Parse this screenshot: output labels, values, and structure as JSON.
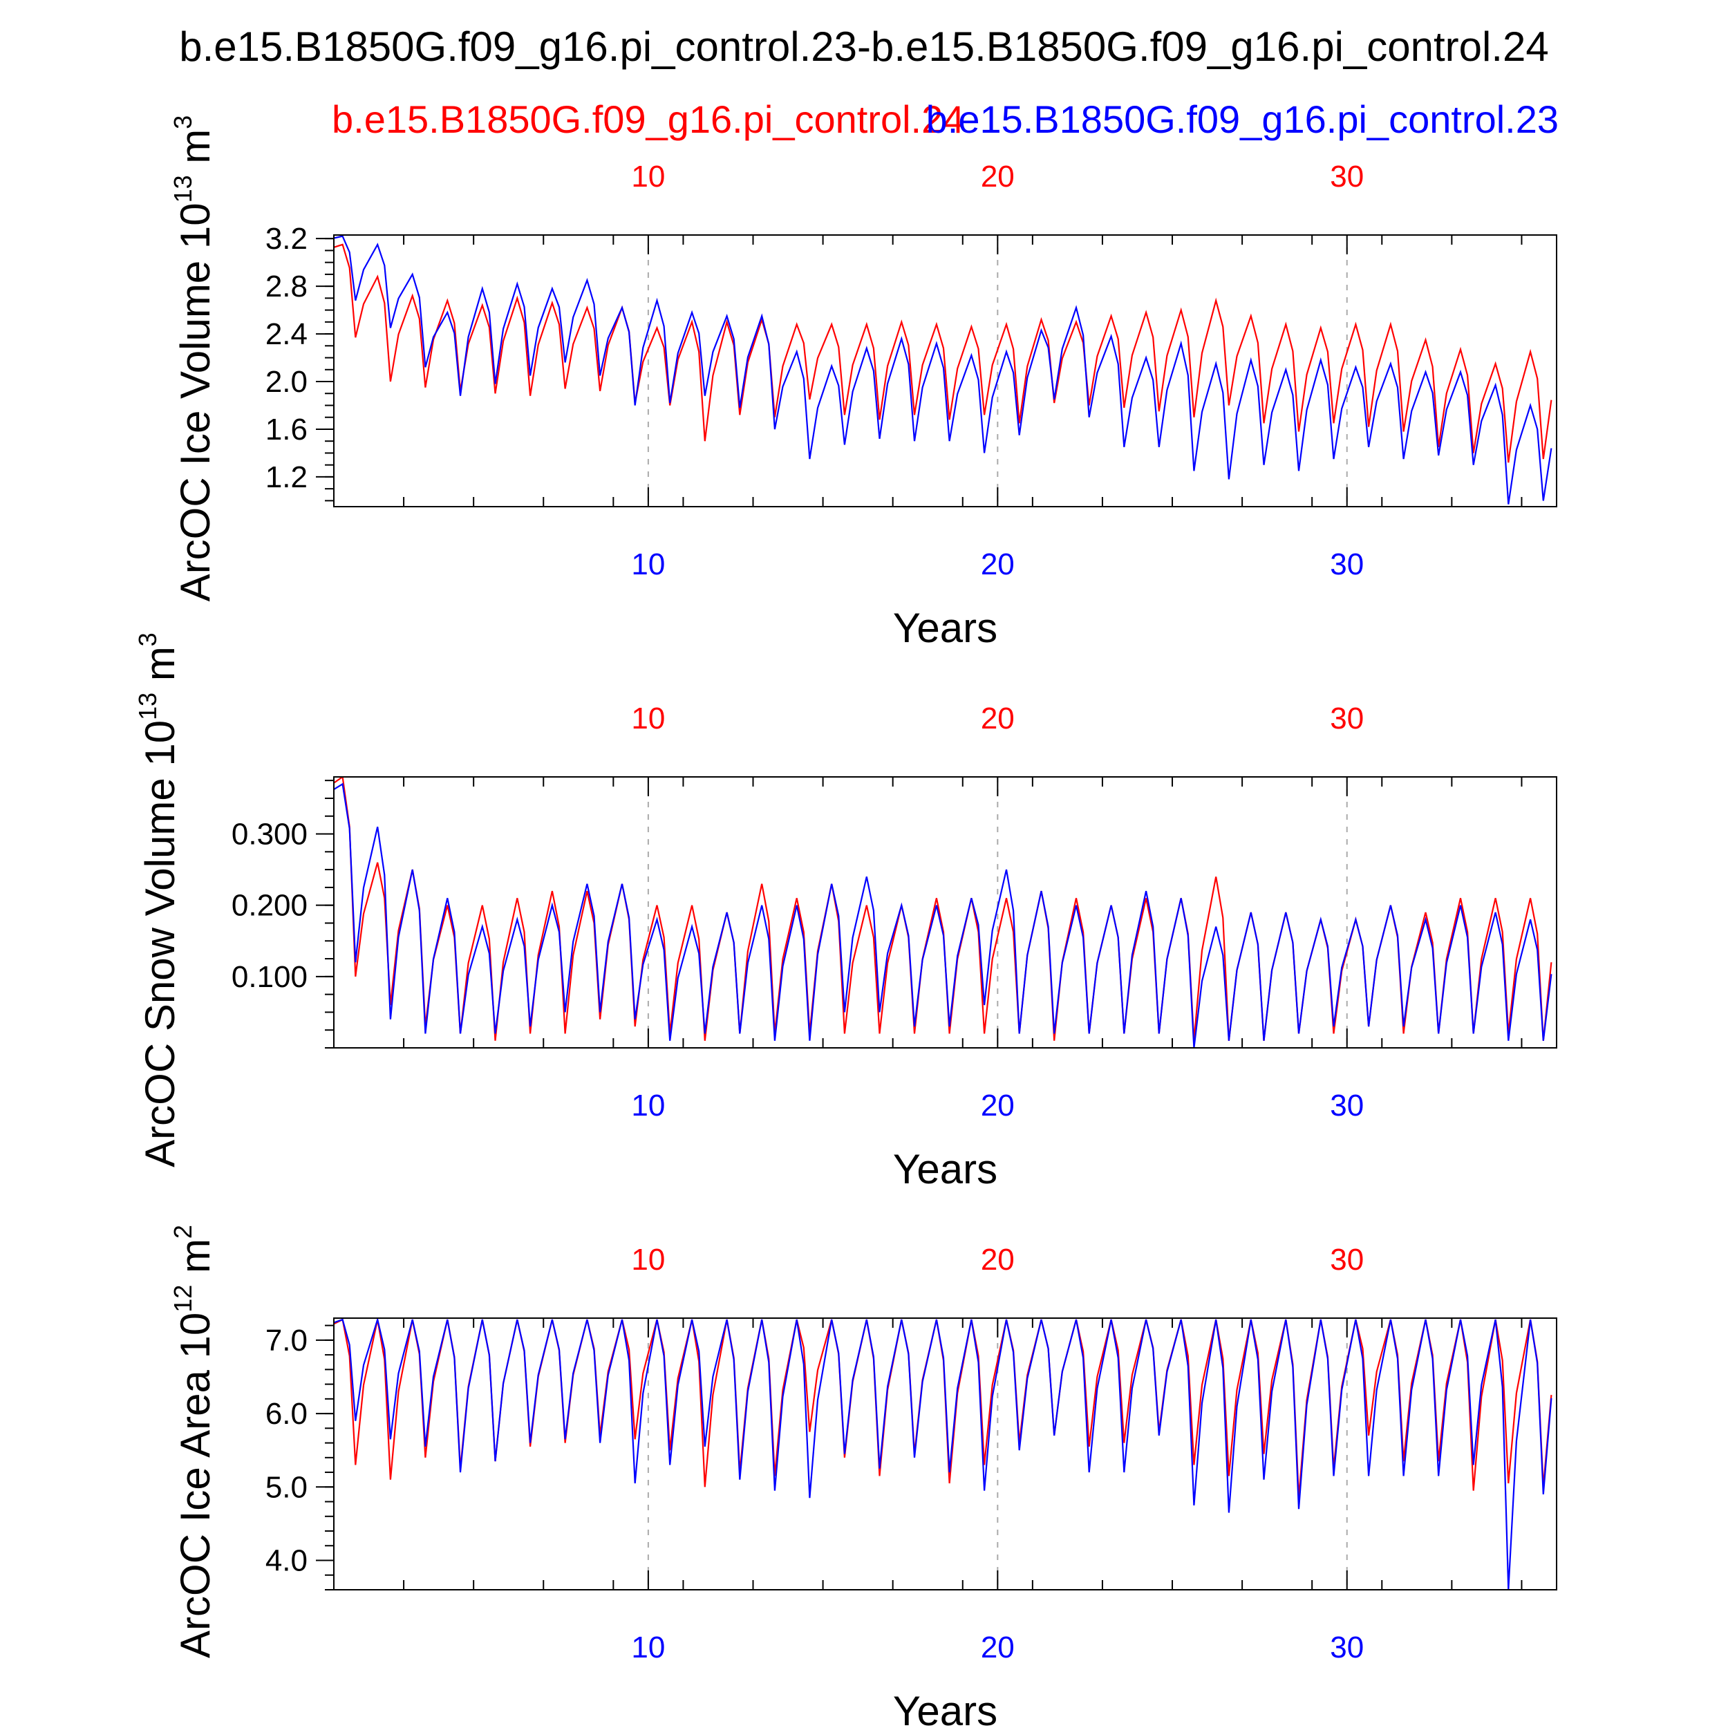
{
  "page": {
    "title": "b.e15.B1850G.f09_g16.pi_control.23-b.e15.B1850G.f09_g16.pi_control.24",
    "legend_red": "b.e15.B1850G.f09_g16.pi_control.24",
    "legend_blue": "b.e15.B1850G.f09_g16.pi_control.23"
  },
  "colors": {
    "red_series": "#ff0000",
    "blue_series": "#0000ff",
    "axis": "#000000",
    "grid": "#aaaaaa"
  },
  "chart_data": [
    {
      "type": "line",
      "id": "ice-volume",
      "ylabel": "ArcOC Ice Volume 10",
      "ylabel_exp": "13",
      "ylabel_unit": " m",
      "ylabel_unit_exp": "3",
      "xlabel": "Years",
      "xlim": [
        1,
        36
      ],
      "ylim": [
        0.95,
        3.23
      ],
      "yticks": [
        "1.2",
        "1.6",
        "2.0",
        "2.4",
        "2.8",
        "3.2"
      ],
      "ytick_values": [
        1.2,
        1.6,
        2.0,
        2.4,
        2.8,
        3.2
      ],
      "yminor": 0.1,
      "xticks": [
        "10",
        "20",
        "30"
      ],
      "xtick_values": [
        10,
        20,
        30
      ],
      "series": [
        {
          "name": "b.e15.B1850G.f09_g16.pi_control.24",
          "color": "red",
          "max": [
            3.15,
            2.88,
            2.72,
            2.68,
            2.64,
            2.7,
            2.66,
            2.62,
            2.62,
            2.45,
            2.5,
            2.5,
            2.52,
            2.48,
            2.48,
            2.48,
            2.5,
            2.48,
            2.46,
            2.48,
            2.52,
            2.5,
            2.55,
            2.58,
            2.6,
            2.68,
            2.55,
            2.48,
            2.45,
            2.48,
            2.48,
            2.35,
            2.27,
            2.15,
            2.25
          ],
          "min": [
            2.37,
            2.0,
            1.95,
            1.92,
            1.9,
            1.88,
            1.94,
            1.92,
            1.82,
            1.8,
            1.5,
            1.72,
            1.7,
            1.85,
            1.72,
            1.68,
            1.72,
            1.68,
            1.72,
            1.65,
            1.82,
            1.8,
            1.78,
            1.75,
            1.7,
            1.8,
            1.65,
            1.58,
            1.65,
            1.62,
            1.58,
            1.45,
            1.4,
            1.32,
            1.35
          ]
        },
        {
          "name": "b.e15.B1850G.f09_g16.pi_control.23",
          "color": "blue",
          "max": [
            3.22,
            3.15,
            2.9,
            2.58,
            2.78,
            2.82,
            2.78,
            2.85,
            2.62,
            2.68,
            2.58,
            2.55,
            2.55,
            2.25,
            2.13,
            2.28,
            2.36,
            2.32,
            2.22,
            2.25,
            2.43,
            2.62,
            2.38,
            2.2,
            2.32,
            2.15,
            2.18,
            2.1,
            2.18,
            2.12,
            2.15,
            2.08,
            2.08,
            1.97,
            1.8
          ],
          "min": [
            2.68,
            2.45,
            2.12,
            1.88,
            1.98,
            2.05,
            2.16,
            2.05,
            1.8,
            1.82,
            1.88,
            1.78,
            1.6,
            1.35,
            1.47,
            1.52,
            1.5,
            1.5,
            1.4,
            1.55,
            1.85,
            1.7,
            1.45,
            1.45,
            1.25,
            1.18,
            1.3,
            1.25,
            1.35,
            1.45,
            1.35,
            1.38,
            1.3,
            0.97,
            1.0
          ]
        }
      ]
    },
    {
      "type": "line",
      "id": "snow-volume",
      "ylabel": "ArcOC Snow Volume 10",
      "ylabel_exp": "13",
      "ylabel_unit": " m",
      "ylabel_unit_exp": "3",
      "xlabel": "Years",
      "xlim": [
        1,
        36
      ],
      "ylim": [
        0.0,
        0.38
      ],
      "yticks": [
        "0.100",
        "0.200",
        "0.300"
      ],
      "ytick_values": [
        0.1,
        0.2,
        0.3
      ],
      "yminor": 0.025,
      "xticks": [
        "10",
        "20",
        "30"
      ],
      "xtick_values": [
        10,
        20,
        30
      ],
      "series": [
        {
          "name": "b.e15.B1850G.f09_g16.pi_control.24",
          "color": "red",
          "max": [
            0.38,
            0.26,
            0.25,
            0.2,
            0.2,
            0.21,
            0.22,
            0.22,
            0.23,
            0.2,
            0.2,
            0.19,
            0.23,
            0.21,
            0.23,
            0.2,
            0.2,
            0.21,
            0.21,
            0.21,
            0.22,
            0.21,
            0.2,
            0.21,
            0.21,
            0.24,
            0.19,
            0.19,
            0.18,
            0.18,
            0.2,
            0.19,
            0.21,
            0.21,
            0.21
          ],
          "min": [
            0.1,
            0.06,
            0.03,
            0.02,
            0.01,
            0.02,
            0.02,
            0.04,
            0.03,
            0.02,
            0.01,
            0.02,
            0.02,
            0.02,
            0.02,
            0.02,
            0.02,
            0.02,
            0.02,
            0.02,
            0.01,
            0.02,
            0.02,
            0.02,
            0.01,
            0.01,
            0.01,
            0.02,
            0.02,
            0.03,
            0.02,
            0.02,
            0.02,
            0.02,
            0.01
          ]
        },
        {
          "name": "b.e15.B1850G.f09_g16.pi_control.23",
          "color": "blue",
          "max": [
            0.37,
            0.31,
            0.25,
            0.21,
            0.17,
            0.18,
            0.2,
            0.23,
            0.23,
            0.18,
            0.17,
            0.19,
            0.2,
            0.2,
            0.23,
            0.24,
            0.2,
            0.2,
            0.21,
            0.25,
            0.22,
            0.2,
            0.2,
            0.22,
            0.21,
            0.17,
            0.19,
            0.19,
            0.18,
            0.18,
            0.2,
            0.18,
            0.2,
            0.19,
            0.18
          ],
          "min": [
            0.12,
            0.04,
            0.02,
            0.02,
            0.02,
            0.03,
            0.05,
            0.05,
            0.04,
            0.01,
            0.02,
            0.02,
            0.01,
            0.01,
            0.05,
            0.05,
            0.03,
            0.03,
            0.06,
            0.02,
            0.02,
            0.02,
            0.02,
            0.02,
            0.0,
            0.01,
            0.01,
            0.02,
            0.03,
            0.03,
            0.03,
            0.02,
            0.02,
            0.01,
            0.01
          ]
        }
      ]
    },
    {
      "type": "line",
      "id": "ice-area",
      "ylabel": "ArcOC Ice Area 10",
      "ylabel_exp": "12",
      "ylabel_unit": " m",
      "ylabel_unit_exp": "2",
      "xlabel": "Years",
      "xlim": [
        1,
        36
      ],
      "ylim": [
        3.6,
        7.3
      ],
      "yticks": [
        "4.0",
        "5.0",
        "6.0",
        "7.0"
      ],
      "ytick_values": [
        4.0,
        5.0,
        6.0,
        7.0
      ],
      "yminor": 0.2,
      "xticks": [
        "10",
        "20",
        "30"
      ],
      "xtick_values": [
        10,
        20,
        30
      ],
      "series": [
        {
          "name": "b.e15.B1850G.f09_g16.pi_control.24",
          "color": "red",
          "max": [
            7.28,
            7.28,
            7.28,
            7.28,
            7.28,
            7.28,
            7.28,
            7.28,
            7.28,
            7.28,
            7.28,
            7.28,
            7.28,
            7.28,
            7.28,
            7.28,
            7.28,
            7.28,
            7.28,
            7.28,
            7.28,
            7.28,
            7.28,
            7.28,
            7.28,
            7.28,
            7.28,
            7.28,
            7.28,
            7.28,
            7.28,
            7.28,
            7.28,
            7.28,
            7.28
          ],
          "min": [
            5.3,
            5.1,
            5.4,
            5.25,
            5.35,
            5.55,
            5.6,
            5.7,
            5.65,
            5.5,
            5.0,
            5.2,
            5.15,
            5.75,
            5.4,
            5.15,
            5.45,
            5.05,
            5.3,
            5.6,
            5.7,
            5.55,
            5.6,
            5.75,
            5.3,
            5.15,
            5.45,
            4.85,
            5.25,
            5.7,
            5.35,
            5.35,
            4.95,
            5.05,
            5.0
          ]
        },
        {
          "name": "b.e15.B1850G.f09_g16.pi_control.23",
          "color": "blue",
          "max": [
            7.28,
            7.28,
            7.28,
            7.28,
            7.28,
            7.28,
            7.28,
            7.28,
            7.28,
            7.28,
            7.28,
            7.28,
            7.28,
            7.28,
            7.28,
            7.28,
            7.28,
            7.28,
            7.28,
            7.28,
            7.28,
            7.28,
            7.28,
            7.28,
            7.28,
            7.28,
            7.28,
            7.28,
            7.28,
            7.28,
            7.28,
            7.28,
            7.28,
            7.28,
            7.28
          ],
          "min": [
            5.9,
            5.65,
            5.55,
            5.2,
            5.35,
            5.6,
            5.65,
            5.6,
            5.05,
            5.3,
            5.55,
            5.1,
            4.95,
            4.85,
            5.45,
            5.25,
            5.4,
            5.2,
            4.95,
            5.5,
            5.7,
            5.2,
            5.2,
            5.7,
            4.75,
            4.65,
            5.1,
            4.7,
            5.15,
            5.15,
            5.15,
            5.15,
            5.3,
            3.6,
            4.9
          ]
        }
      ]
    }
  ]
}
